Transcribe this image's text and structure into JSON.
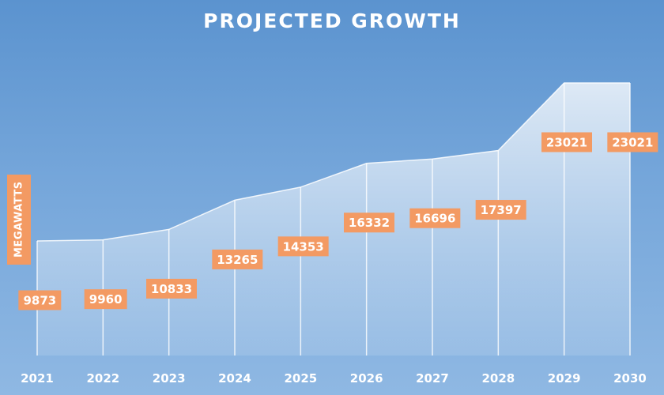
{
  "chart_data": {
    "type": "area",
    "title": "PROJECTED GROWTH",
    "ylabel": "MEGAWATTS",
    "xlabel": "",
    "categories": [
      "2021",
      "2022",
      "2023",
      "2024",
      "2025",
      "2026",
      "2027",
      "2028",
      "2029",
      "2030"
    ],
    "values": [
      9873,
      9960,
      10833,
      13265,
      14353,
      16332,
      16696,
      17397,
      23021,
      23021
    ],
    "data_labels": [
      "9873",
      "9960",
      "10833",
      "13265",
      "14353",
      "16332",
      "16696",
      "17397",
      "23021",
      "23021"
    ],
    "grid": false,
    "legend": "none",
    "colors": {
      "background": "#6a9fd6",
      "area_fill": "#ffffff",
      "label_bg": "#f39a63",
      "text": "#ffffff"
    }
  }
}
